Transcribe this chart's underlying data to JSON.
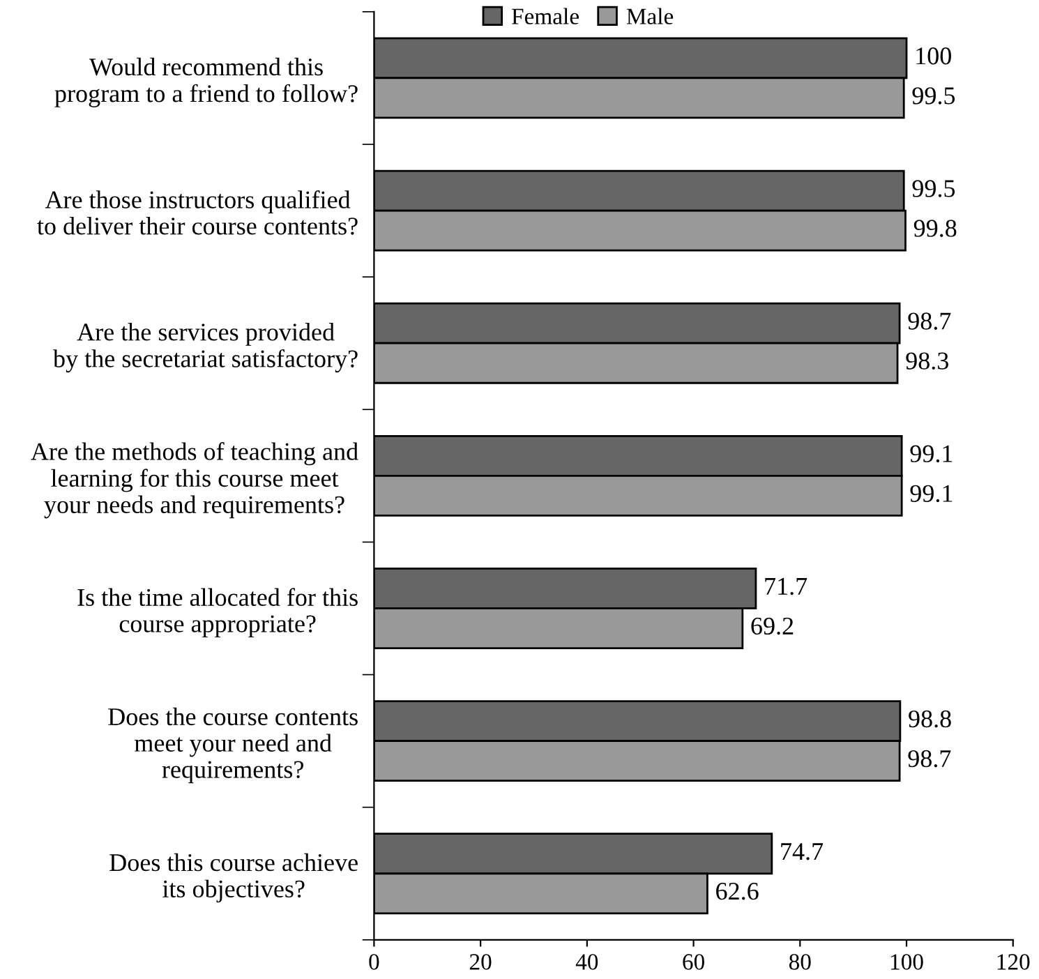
{
  "chart_data": {
    "type": "bar",
    "orientation": "horizontal",
    "categories": [
      "Would recommend this\nprogram to a friend to follow?",
      "Are those instructors qualified\nto deliver their course contents?",
      "Are the services provided\nby the secretariat satisfactory?",
      "Are the methods of teaching and\nlearning for this course meet\nyour needs and requirements?",
      "Is the time allocated for this\ncourse appropriate?",
      "Does the course contents\nmeet your need and\nrequirements?",
      "Does this course achieve\nits objectives?"
    ],
    "series": [
      {
        "name": "Female",
        "color": "#666666",
        "values": [
          100,
          99.5,
          98.7,
          99.1,
          71.7,
          98.8,
          74.7
        ]
      },
      {
        "name": "Male",
        "color": "#999999",
        "values": [
          99.5,
          99.8,
          98.3,
          99.1,
          69.2,
          98.7,
          62.6
        ]
      }
    ],
    "xlim": [
      0,
      120
    ],
    "xticks": [
      0,
      20,
      40,
      60,
      80,
      100,
      120
    ],
    "data_labels": true,
    "legend": "top",
    "grid": false
  }
}
